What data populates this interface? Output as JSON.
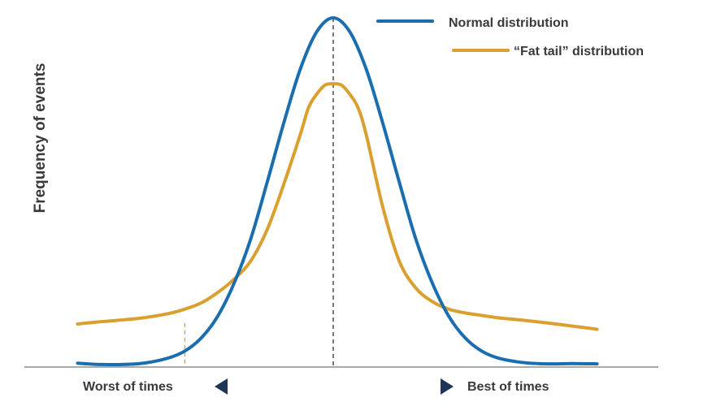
{
  "chart_data": {
    "type": "line",
    "title": "",
    "ylabel": "Frequency of events",
    "xlabel": "",
    "x_annotations": {
      "left": "Worst of times",
      "right": "Best of times"
    },
    "legend_position": "top-right",
    "grid": false,
    "xlim": [
      -3.45,
      3.45
    ],
    "ylim": [
      0,
      1.0
    ],
    "series": [
      {
        "name": "Normal distribution",
        "color": "#1a6eb0",
        "x": [
          -3.1,
          -2.9,
          -2.6,
          -2.3,
          -2.0,
          -1.8,
          -1.6,
          -1.4,
          -1.2,
          -1.0,
          -0.8,
          -0.6,
          -0.4,
          -0.2,
          0.0,
          0.2,
          0.4,
          0.6,
          0.8,
          1.0,
          1.2,
          1.4,
          1.6,
          1.8,
          2.0,
          2.3,
          2.6,
          2.9,
          3.2
        ],
        "values": [
          0.004,
          0.001,
          0.0,
          0.004,
          0.019,
          0.039,
          0.077,
          0.14,
          0.236,
          0.363,
          0.527,
          0.697,
          0.852,
          0.96,
          1.0,
          0.96,
          0.852,
          0.697,
          0.527,
          0.363,
          0.236,
          0.14,
          0.077,
          0.039,
          0.019,
          0.006,
          0.002,
          0.003,
          0.002
        ]
      },
      {
        "name": "“Fat tail” distribution",
        "color": "#d9a030",
        "x": [
          -3.1,
          -2.9,
          -2.6,
          -2.3,
          -2.0,
          -1.8,
          -1.6,
          -1.4,
          -1.2,
          -1.0,
          -0.8,
          -0.6,
          -0.4,
          -0.3,
          -0.2,
          -0.1,
          0.0,
          0.1,
          0.2,
          0.3,
          0.4,
          0.6,
          0.8,
          1.0,
          1.2,
          1.4,
          1.6,
          1.8,
          2.0,
          2.3,
          2.6,
          2.9,
          3.2
        ],
        "values": [
          0.117,
          0.122,
          0.128,
          0.135,
          0.147,
          0.16,
          0.178,
          0.208,
          0.247,
          0.299,
          0.39,
          0.52,
          0.663,
          0.741,
          0.78,
          0.806,
          0.81,
          0.806,
          0.78,
          0.741,
          0.663,
          0.455,
          0.299,
          0.221,
          0.182,
          0.16,
          0.149,
          0.142,
          0.135,
          0.128,
          0.12,
          0.111,
          0.102
        ]
      }
    ],
    "reference_lines": [
      {
        "x": 0.0,
        "style": "dashed",
        "color": "#333333"
      },
      {
        "x": -1.8,
        "style": "dashed",
        "color": "#d9a030"
      }
    ]
  }
}
